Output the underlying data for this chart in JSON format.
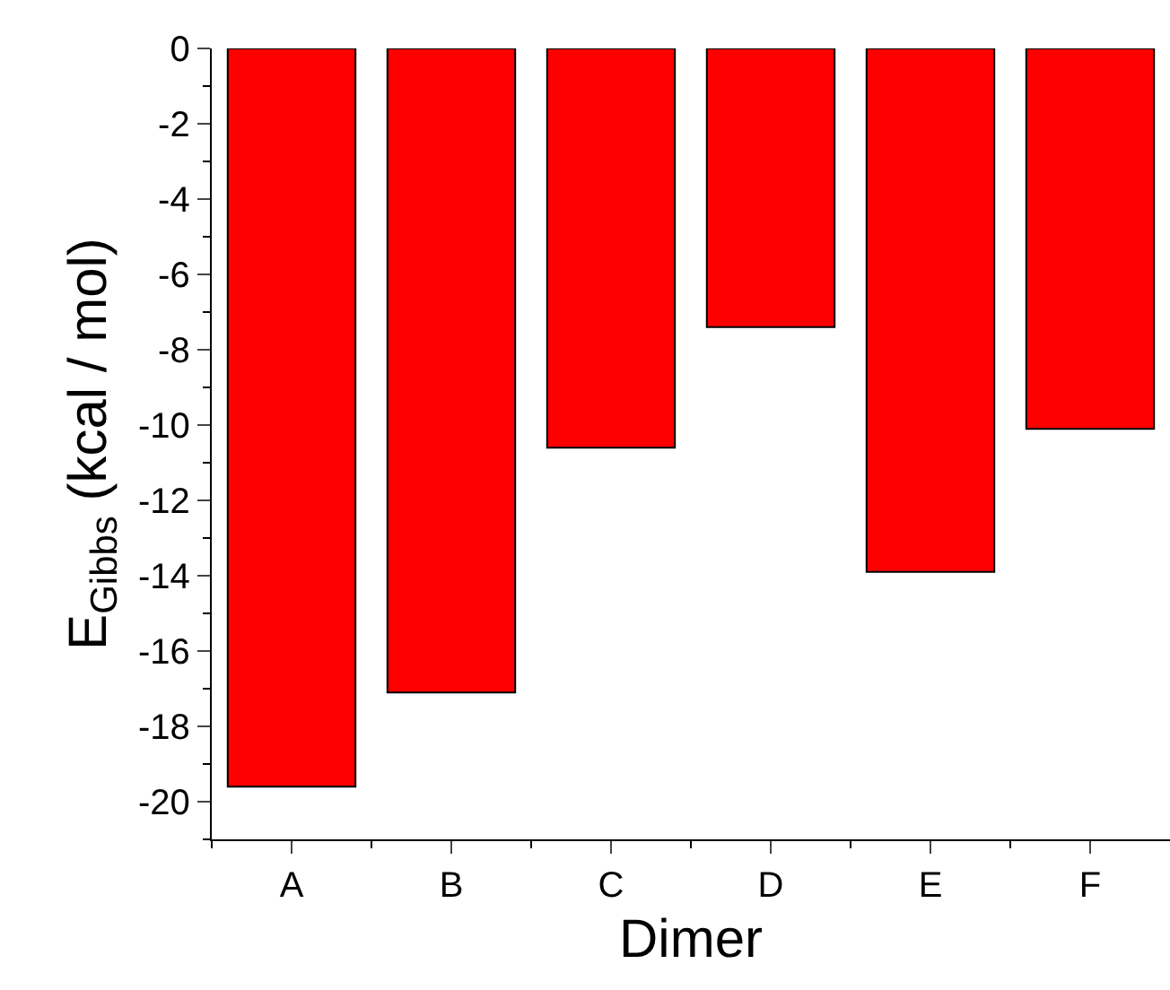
{
  "chart_data": {
    "type": "bar",
    "xlabel": "Dimer",
    "ylabel": "E$_{Gibbs}$ (kcal / mol)",
    "categories": [
      "A",
      "B",
      "C",
      "D",
      "E",
      "F"
    ],
    "values": [
      -19.6,
      -17.1,
      -10.6,
      -7.4,
      -13.9,
      -10.1
    ],
    "color": "#ff0000",
    "ylim": [
      -21,
      0
    ],
    "yticks": [
      0,
      -2,
      -4,
      -6,
      -8,
      -10,
      -12,
      -14,
      -16,
      -18,
      -20
    ]
  }
}
